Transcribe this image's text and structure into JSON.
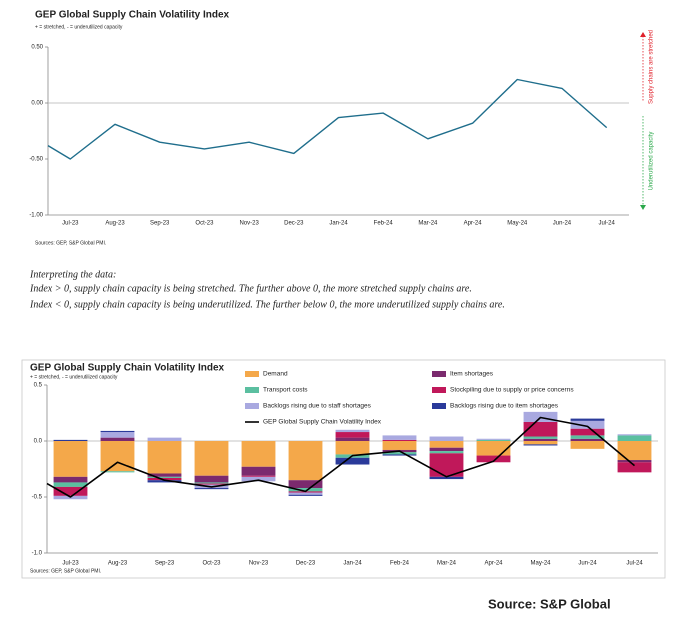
{
  "chart_data": [
    {
      "type": "line",
      "title": "GEP Global Supply Chain Volatility Index",
      "subtitle": "+ = stretched, - = underutilized capacity",
      "categories": [
        null,
        "Jul-23",
        "Aug-23",
        "Sep-23",
        "Oct-23",
        "Nov-23",
        "Dec-23",
        "Jan-24",
        "Feb-24",
        "Mar-24",
        "Apr-24",
        "May-24",
        "Jun-24",
        "Jul-24"
      ],
      "values": [
        -0.38,
        -0.5,
        -0.19,
        -0.35,
        -0.41,
        -0.35,
        -0.45,
        -0.13,
        -0.09,
        -0.32,
        -0.18,
        0.21,
        0.13,
        -0.22
      ],
      "color": "#1f6e8c",
      "ylim": [
        -1,
        0.5
      ],
      "yticks": [
        {
          "value": 0.5,
          "label": "0.50"
        },
        {
          "value": 0,
          "label": "0.00"
        },
        {
          "value": -0.5,
          "label": "-0.50"
        },
        {
          "value": -1,
          "label": "-1.00"
        }
      ],
      "annotations": [
        {
          "text": "Supply chains are stretched",
          "color": "#e0202a"
        },
        {
          "text": "Underutilized capacity",
          "color": "#2aa84a"
        }
      ],
      "source": "Sources: GEP, S&P Global PMI."
    },
    {
      "type": "bar",
      "stacked": true,
      "title": "GEP Global Supply Chain Volatility Index",
      "subtitle": "+ = stretched, - = underutilized capacity",
      "categories": [
        null,
        "Jul-23",
        "Aug-23",
        "Sep-23",
        "Oct-23",
        "Nov-23",
        "Dec-23",
        "Jan-24",
        "Feb-24",
        "Mar-24",
        "Apr-24",
        "May-24",
        "Jun-24",
        "Jul-24"
      ],
      "series": [
        {
          "name": "Demand",
          "color": "#f4a84a",
          "values": [
            null,
            -0.32,
            -0.27,
            -0.29,
            -0.31,
            -0.23,
            -0.35,
            -0.12,
            -0.08,
            -0.06,
            -0.13,
            -0.03,
            -0.07,
            -0.17
          ]
        },
        {
          "name": "Item shortages",
          "color": "#7b2a6e",
          "values": [
            null,
            -0.05,
            0.03,
            -0.03,
            -0.06,
            -0.08,
            -0.07,
            0.03,
            -0.02,
            -0.03,
            0,
            0.02,
            0.02,
            -0.02
          ]
        },
        {
          "name": "Transport costs",
          "color": "#5bbfa0",
          "values": [
            null,
            -0.04,
            -0.01,
            -0.01,
            -0.01,
            0,
            -0.03,
            -0.03,
            -0.02,
            -0.02,
            0.01,
            0.02,
            0.03,
            0.05
          ]
        },
        {
          "name": "Stockpiling due to supply or price concerns",
          "color": "#c0185a",
          "values": [
            null,
            -0.08,
            0,
            -0.02,
            -0.01,
            -0.01,
            -0.01,
            0.05,
            0.01,
            -0.21,
            -0.06,
            0.13,
            0.06,
            -0.09
          ]
        },
        {
          "name": "Backlogs rising due to staff shortages",
          "color": "#a9a9e0",
          "values": [
            null,
            -0.03,
            0.05,
            0.03,
            -0.03,
            -0.04,
            -0.02,
            0.02,
            0.04,
            0.04,
            0.01,
            0.09,
            0.07,
            0.01
          ]
        },
        {
          "name": "Backlogs rising due to item shortages",
          "color": "#2a3a9a",
          "values": [
            null,
            0.01,
            0.01,
            -0.02,
            -0.01,
            0,
            -0.01,
            -0.06,
            -0.01,
            -0.02,
            0,
            -0.01,
            0.02,
            0
          ]
        },
        {
          "name": "GEP Global Supply Chain Volatility Index",
          "type": "line",
          "color": "#000000",
          "values": [
            -0.38,
            -0.5,
            -0.19,
            -0.35,
            -0.41,
            -0.35,
            -0.45,
            -0.13,
            -0.09,
            -0.32,
            -0.18,
            0.21,
            0.13,
            -0.22
          ]
        }
      ],
      "ylim": [
        -1,
        0.5
      ],
      "yticks": [
        0.5,
        {
          "value": 0,
          "label": "0.0"
        },
        -0.5,
        {
          "value": -1,
          "label": "-1.0"
        }
      ],
      "source": "Sources: GEP, S&P Global PMI."
    }
  ],
  "interpretation": {
    "heading": "Interpreting the data:",
    "lines": [
      "Index > 0, supply chain capacity is being stretched. The further above 0, the more stretched supply chains are.",
      "Index < 0, supply chain capacity is being underutilized. The further below 0, the more underutilized supply chains are."
    ]
  },
  "source": "Source: S&P Global"
}
